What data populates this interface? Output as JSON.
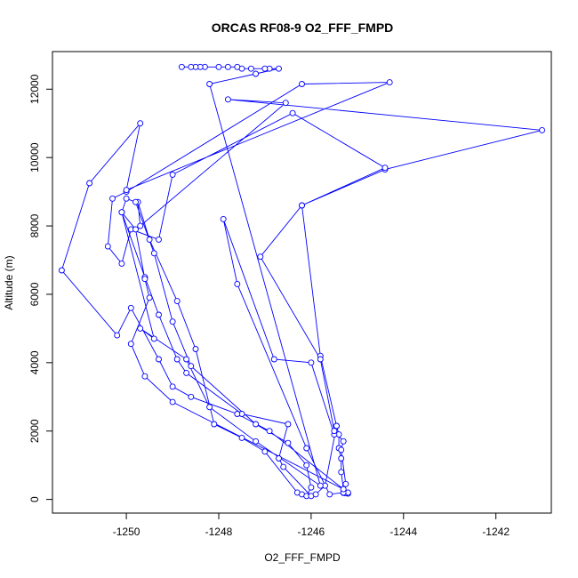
{
  "chart_data": {
    "type": "line",
    "title": "ORCAS RF08-9 O2_FFF_FMPD",
    "xlabel": "O2_FFF_FMPD",
    "ylabel": "Altitude (m)",
    "xlim": [
      -1251.6,
      -1240.8
    ],
    "ylim": [
      -400,
      13100
    ],
    "xticks": [
      -1250,
      -1248,
      -1246,
      -1244,
      -1242
    ],
    "yticks": [
      0,
      2000,
      4000,
      6000,
      8000,
      10000,
      12000
    ],
    "xtick_labels": [
      "-1250",
      "-1248",
      "-1246",
      "-1244",
      "-1242"
    ],
    "ytick_labels": [
      "0",
      "2000",
      "4000",
      "6000",
      "8000",
      "10000",
      "12000"
    ],
    "grid": false,
    "legend": "none",
    "series_color": "#0000ff",
    "markers": "open-circle",
    "points": [
      [
        -1245.2,
        170
      ],
      [
        -1245.25,
        180
      ],
      [
        -1245.3,
        190
      ],
      [
        -1245.2,
        200
      ],
      [
        -1245.3,
        300
      ],
      [
        -1245.35,
        800
      ],
      [
        -1245.35,
        1200
      ],
      [
        -1245.4,
        1500
      ],
      [
        -1245.4,
        1900
      ],
      [
        -1245.45,
        2150
      ],
      [
        -1245.8,
        4200
      ],
      [
        -1246.2,
        8600
      ],
      [
        -1244.4,
        9650
      ],
      [
        -1241.0,
        10800
      ],
      [
        -1247.8,
        11700
      ],
      [
        -1246.55,
        11600
      ],
      [
        -1249.7,
        8000
      ],
      [
        -1249.75,
        8700
      ],
      [
        -1249.5,
        7600
      ],
      [
        -1248.9,
        5800
      ],
      [
        -1248.5,
        4400
      ],
      [
        -1248.1,
        2200
      ],
      [
        -1247.5,
        1800
      ],
      [
        -1247.0,
        1400
      ],
      [
        -1246.3,
        200
      ],
      [
        -1246.2,
        150
      ],
      [
        -1246.1,
        100
      ],
      [
        -1246.0,
        350
      ],
      [
        -1246.1,
        1000
      ],
      [
        -1246.5,
        1650
      ],
      [
        -1247.2,
        2200
      ],
      [
        -1248.6,
        3900
      ],
      [
        -1249.0,
        5200
      ],
      [
        -1249.4,
        7200
      ],
      [
        -1249.8,
        8700
      ],
      [
        -1250.0,
        8800
      ],
      [
        -1250.1,
        8400
      ],
      [
        -1249.6,
        6500
      ],
      [
        -1249.3,
        5400
      ],
      [
        -1248.9,
        4100
      ],
      [
        -1248.7,
        3700
      ],
      [
        -1247.5,
        2500
      ],
      [
        -1246.5,
        2200
      ],
      [
        -1246.7,
        1200
      ],
      [
        -1246.6,
        950
      ],
      [
        -1246.0,
        100
      ],
      [
        -1245.9,
        150
      ],
      [
        -1245.7,
        400
      ],
      [
        -1245.45,
        2150
      ],
      [
        -1245.5,
        1900
      ],
      [
        -1246.0,
        4000
      ],
      [
        -1246.8,
        4100
      ],
      [
        -1247.9,
        8200
      ],
      [
        -1247.6,
        6300
      ],
      [
        -1246.1,
        1500
      ],
      [
        -1245.6,
        150
      ],
      [
        -1245.3,
        200
      ],
      [
        -1245.25,
        450
      ],
      [
        -1245.35,
        1450
      ],
      [
        -1245.3,
        1700
      ],
      [
        -1245.5,
        2000
      ],
      [
        -1245.8,
        4100
      ],
      [
        -1247.1,
        7100
      ],
      [
        -1246.2,
        8600
      ],
      [
        -1244.4,
        9700
      ],
      [
        -1246.4,
        11300
      ],
      [
        -1249.0,
        9500
      ],
      [
        -1249.3,
        7600
      ],
      [
        -1249.9,
        7900
      ],
      [
        -1250.1,
        6900
      ],
      [
        -1250.4,
        7400
      ],
      [
        -1250.3,
        8800
      ],
      [
        -1250.0,
        9000
      ],
      [
        -1246.2,
        12150
      ],
      [
        -1244.3,
        12200
      ],
      [
        -1250.0,
        9050
      ],
      [
        -1249.7,
        11000
      ],
      [
        -1250.8,
        9250
      ],
      [
        -1251.4,
        6700
      ],
      [
        -1250.2,
        4800
      ],
      [
        -1249.9,
        5600
      ],
      [
        -1249.3,
        4100
      ],
      [
        -1249.0,
        3300
      ],
      [
        -1248.6,
        3000
      ],
      [
        -1247.6,
        2500
      ],
      [
        -1246.9,
        2000
      ],
      [
        -1245.3,
        300
      ],
      [
        -1249.0,
        2850
      ],
      [
        -1249.6,
        3600
      ],
      [
        -1249.9,
        4550
      ],
      [
        -1249.5,
        5900
      ],
      [
        -1249.6,
        6450
      ],
      [
        -1249.8,
        7900
      ],
      [
        -1250.1,
        8400
      ],
      [
        -1249.4,
        4700
      ],
      [
        -1249.7,
        5000
      ],
      [
        -1248.7,
        4100
      ],
      [
        -1248.2,
        2700
      ],
      [
        -1247.2,
        1700
      ],
      [
        -1245.8,
        400
      ],
      [
        -1248.2,
        12150
      ],
      [
        -1247.2,
        12450
      ],
      [
        -1246.7,
        12600
      ],
      [
        -1246.9,
        12600
      ],
      [
        -1247.0,
        12600
      ],
      [
        -1247.3,
        12600
      ],
      [
        -1247.5,
        12600
      ],
      [
        -1247.6,
        12650
      ],
      [
        -1247.8,
        12650
      ],
      [
        -1248.0,
        12650
      ],
      [
        -1248.3,
        12650
      ],
      [
        -1248.4,
        12650
      ],
      [
        -1248.5,
        12650
      ],
      [
        -1248.6,
        12650
      ],
      [
        -1248.8,
        12650
      ]
    ]
  }
}
